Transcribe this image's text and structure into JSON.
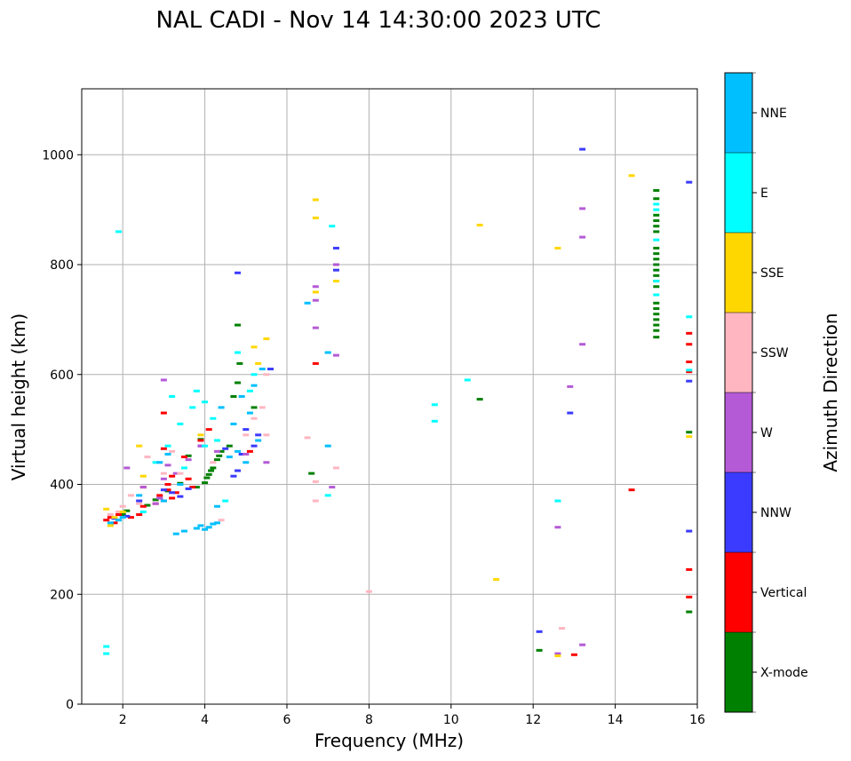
{
  "chart_data": {
    "type": "scatter",
    "title": "NAL CADI - Nov 14 14:30:00 2023 UTC",
    "xlabel": "Frequency (MHz)",
    "ylabel": "Virtual height (km)",
    "xlim": [
      1,
      16
    ],
    "ylim": [
      0,
      1120
    ],
    "xticks": [
      2,
      4,
      6,
      8,
      10,
      12,
      14,
      16
    ],
    "yticks": [
      0,
      200,
      400,
      600,
      800,
      1000
    ],
    "grid": true,
    "colorbar": {
      "label": "Azimuth Direction",
      "categories": [
        {
          "name": "X-mode",
          "color": "#008000"
        },
        {
          "name": "Vertical",
          "color": "#ff0000"
        },
        {
          "name": "NNW",
          "color": "#3b3bff"
        },
        {
          "name": "W",
          "color": "#b45ad6"
        },
        {
          "name": "SSW",
          "color": "#ffb6c1"
        },
        {
          "name": "SSE",
          "color": "#ffd700"
        },
        {
          "name": "E",
          "color": "#00ffff"
        },
        {
          "name": "NNE",
          "color": "#00bfff"
        }
      ]
    },
    "series": [
      {
        "name": "X-mode",
        "points": [
          [
            2.0,
            345
          ],
          [
            2.1,
            352
          ],
          [
            2.6,
            362
          ],
          [
            2.8,
            372
          ],
          [
            3.1,
            388
          ],
          [
            3.4,
            402
          ],
          [
            3.6,
            452
          ],
          [
            3.8,
            395
          ],
          [
            3.9,
            482
          ],
          [
            4.0,
            403
          ],
          [
            4.05,
            412
          ],
          [
            4.1,
            418
          ],
          [
            4.15,
            425
          ],
          [
            4.2,
            430
          ],
          [
            4.3,
            445
          ],
          [
            4.35,
            452
          ],
          [
            4.4,
            460
          ],
          [
            4.6,
            470
          ],
          [
            4.7,
            560
          ],
          [
            4.8,
            585
          ],
          [
            4.85,
            620
          ],
          [
            4.8,
            690
          ],
          [
            5.2,
            540
          ],
          [
            6.6,
            420
          ],
          [
            10.7,
            555
          ],
          [
            12.15,
            98
          ],
          [
            15.0,
            668
          ],
          [
            15.0,
            680
          ],
          [
            15.0,
            690
          ],
          [
            15.0,
            700
          ],
          [
            15.0,
            710
          ],
          [
            15.0,
            720
          ],
          [
            15.0,
            730
          ],
          [
            15.0,
            760
          ],
          [
            15.0,
            770
          ],
          [
            15.0,
            780
          ],
          [
            15.0,
            790
          ],
          [
            15.0,
            800
          ],
          [
            15.0,
            810
          ],
          [
            15.0,
            820
          ],
          [
            15.0,
            830
          ],
          [
            15.0,
            860
          ],
          [
            15.0,
            870
          ],
          [
            15.0,
            880
          ],
          [
            15.0,
            890
          ],
          [
            15.0,
            920
          ],
          [
            15.0,
            935
          ],
          [
            15.8,
            168
          ],
          [
            15.8,
            495
          ]
        ]
      },
      {
        "name": "Vertical",
        "points": [
          [
            1.6,
            335
          ],
          [
            1.7,
            340
          ],
          [
            1.8,
            330
          ],
          [
            1.9,
            345
          ],
          [
            2.2,
            340
          ],
          [
            2.4,
            345
          ],
          [
            2.5,
            360
          ],
          [
            2.5,
            395
          ],
          [
            2.8,
            365
          ],
          [
            2.9,
            380
          ],
          [
            3.0,
            370
          ],
          [
            3.0,
            465
          ],
          [
            3.0,
            530
          ],
          [
            3.1,
            390
          ],
          [
            3.1,
            400
          ],
          [
            3.2,
            375
          ],
          [
            3.2,
            415
          ],
          [
            3.3,
            385
          ],
          [
            3.5,
            450
          ],
          [
            3.6,
            410
          ],
          [
            3.7,
            395
          ],
          [
            3.9,
            480
          ],
          [
            4.1,
            500
          ],
          [
            5.1,
            460
          ],
          [
            6.7,
            620
          ],
          [
            13.0,
            90
          ],
          [
            14.4,
            390
          ],
          [
            15.8,
            195
          ],
          [
            15.8,
            245
          ],
          [
            15.8,
            605
          ],
          [
            15.8,
            623
          ],
          [
            15.8,
            655
          ],
          [
            15.8,
            675
          ]
        ]
      },
      {
        "name": "NNW",
        "points": [
          [
            1.8,
            338
          ],
          [
            2.1,
            342
          ],
          [
            2.4,
            370
          ],
          [
            2.9,
            375
          ],
          [
            3.0,
            390
          ],
          [
            3.2,
            385
          ],
          [
            3.4,
            378
          ],
          [
            3.6,
            392
          ],
          [
            3.9,
            470
          ],
          [
            4.5,
            465
          ],
          [
            4.7,
            415
          ],
          [
            4.8,
            425
          ],
          [
            4.9,
            455
          ],
          [
            5.0,
            500
          ],
          [
            5.2,
            470
          ],
          [
            5.3,
            490
          ],
          [
            5.6,
            610
          ],
          [
            4.8,
            785
          ],
          [
            7.2,
            790
          ],
          [
            7.2,
            830
          ],
          [
            12.15,
            132
          ],
          [
            12.9,
            530
          ],
          [
            13.2,
            1010
          ],
          [
            15.8,
            315
          ],
          [
            15.8,
            588
          ],
          [
            15.8,
            950
          ]
        ]
      },
      {
        "name": "W",
        "points": [
          [
            2.1,
            430
          ],
          [
            2.5,
            395
          ],
          [
            2.8,
            365
          ],
          [
            2.9,
            375
          ],
          [
            3.0,
            410
          ],
          [
            3.0,
            590
          ],
          [
            3.1,
            435
          ],
          [
            3.3,
            420
          ],
          [
            3.6,
            445
          ],
          [
            3.9,
            470
          ],
          [
            4.3,
            460
          ],
          [
            5.0,
            455
          ],
          [
            5.5,
            440
          ],
          [
            6.7,
            685
          ],
          [
            6.7,
            735
          ],
          [
            6.7,
            760
          ],
          [
            7.1,
            395
          ],
          [
            7.2,
            635
          ],
          [
            7.2,
            800
          ],
          [
            12.6,
            92
          ],
          [
            12.6,
            322
          ],
          [
            12.9,
            578
          ],
          [
            13.2,
            108
          ],
          [
            13.2,
            655
          ],
          [
            13.2,
            850
          ],
          [
            13.2,
            902
          ]
        ]
      },
      {
        "name": "SSW",
        "points": [
          [
            1.7,
            345
          ],
          [
            1.9,
            350
          ],
          [
            2.0,
            360
          ],
          [
            2.2,
            380
          ],
          [
            2.4,
            365
          ],
          [
            2.6,
            450
          ],
          [
            3.0,
            420
          ],
          [
            3.2,
            460
          ],
          [
            3.4,
            420
          ],
          [
            4.2,
            440
          ],
          [
            4.4,
            335
          ],
          [
            5.0,
            490
          ],
          [
            5.2,
            520
          ],
          [
            5.4,
            540
          ],
          [
            5.5,
            600
          ],
          [
            5.5,
            490
          ],
          [
            6.5,
            485
          ],
          [
            6.7,
            405
          ],
          [
            6.7,
            370
          ],
          [
            7.2,
            430
          ],
          [
            8.0,
            205
          ],
          [
            12.6,
            370
          ],
          [
            12.7,
            138
          ]
        ]
      },
      {
        "name": "SSE",
        "points": [
          [
            1.6,
            355
          ],
          [
            1.7,
            325
          ],
          [
            1.8,
            340
          ],
          [
            2.0,
            350
          ],
          [
            2.4,
            470
          ],
          [
            2.5,
            415
          ],
          [
            3.9,
            490
          ],
          [
            4.3,
            480
          ],
          [
            5.2,
            650
          ],
          [
            5.3,
            620
          ],
          [
            5.5,
            665
          ],
          [
            6.7,
            750
          ],
          [
            6.7,
            885
          ],
          [
            6.7,
            918
          ],
          [
            7.2,
            770
          ],
          [
            10.7,
            872
          ],
          [
            11.1,
            227
          ],
          [
            12.6,
            830
          ],
          [
            12.6,
            88
          ],
          [
            14.4,
            962
          ],
          [
            15.8,
            487
          ]
        ]
      },
      {
        "name": "E",
        "points": [
          [
            1.6,
            92
          ],
          [
            1.6,
            105
          ],
          [
            1.9,
            860
          ],
          [
            2.5,
            350
          ],
          [
            2.8,
            440
          ],
          [
            3.1,
            470
          ],
          [
            3.2,
            560
          ],
          [
            3.4,
            510
          ],
          [
            3.5,
            430
          ],
          [
            3.7,
            540
          ],
          [
            3.8,
            570
          ],
          [
            4.0,
            470
          ],
          [
            4.0,
            550
          ],
          [
            4.2,
            520
          ],
          [
            4.3,
            480
          ],
          [
            4.5,
            370
          ],
          [
            4.8,
            640
          ],
          [
            5.1,
            570
          ],
          [
            5.2,
            600
          ],
          [
            7.0,
            380
          ],
          [
            7.0,
            640
          ],
          [
            7.1,
            870
          ],
          [
            9.6,
            545
          ],
          [
            9.6,
            515
          ],
          [
            10.4,
            590
          ],
          [
            12.6,
            370
          ],
          [
            15.0,
            745
          ],
          [
            15.0,
            770
          ],
          [
            15.0,
            845
          ],
          [
            15.0,
            900
          ],
          [
            15.0,
            910
          ],
          [
            15.8,
            608
          ],
          [
            15.8,
            705
          ]
        ]
      },
      {
        "name": "NNE",
        "points": [
          [
            1.7,
            330
          ],
          [
            1.9,
            335
          ],
          [
            2.0,
            340
          ],
          [
            2.4,
            380
          ],
          [
            2.9,
            440
          ],
          [
            3.0,
            370
          ],
          [
            3.1,
            455
          ],
          [
            3.3,
            310
          ],
          [
            3.4,
            400
          ],
          [
            3.5,
            315
          ],
          [
            3.8,
            320
          ],
          [
            3.9,
            325
          ],
          [
            4.0,
            318
          ],
          [
            4.1,
            322
          ],
          [
            4.2,
            328
          ],
          [
            4.3,
            330
          ],
          [
            4.3,
            360
          ],
          [
            4.4,
            540
          ],
          [
            4.6,
            450
          ],
          [
            4.7,
            510
          ],
          [
            4.8,
            460
          ],
          [
            4.9,
            560
          ],
          [
            5.0,
            440
          ],
          [
            5.1,
            530
          ],
          [
            5.2,
            580
          ],
          [
            5.3,
            480
          ],
          [
            5.4,
            610
          ],
          [
            6.5,
            730
          ],
          [
            7.0,
            470
          ],
          [
            7.0,
            640
          ]
        ]
      }
    ]
  }
}
